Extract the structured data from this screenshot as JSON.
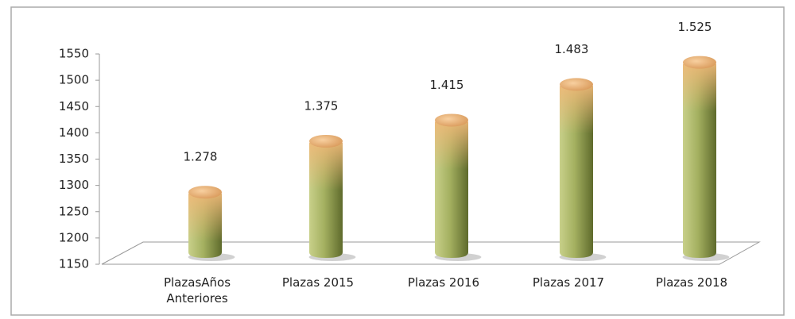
{
  "chart_data": {
    "type": "bar",
    "categories": [
      "PlazasAños Anteriores",
      "Plazas 2015",
      "Plazas 2016",
      "Plazas 2017",
      "Plazas 2018"
    ],
    "values": [
      1278,
      1375,
      1415,
      1483,
      1525
    ],
    "value_labels": [
      "1.278",
      "1.375",
      "1.415",
      "1.483",
      "1.525"
    ],
    "color": "#a4b060",
    "ylim": [
      1150,
      1550
    ],
    "yticks": [
      1150,
      1200,
      1250,
      1300,
      1350,
      1400,
      1450,
      1500,
      1550
    ]
  }
}
